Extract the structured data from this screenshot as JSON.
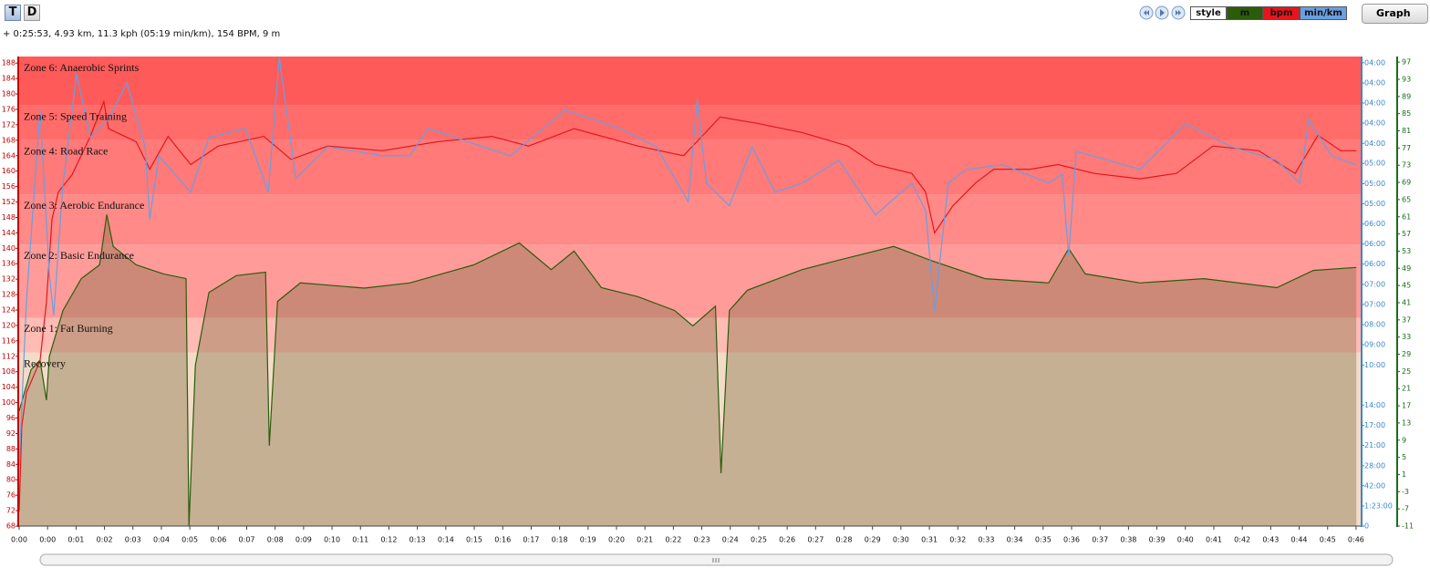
{
  "toolbar": {
    "t_button": "T",
    "d_button": "D",
    "style_button": "style",
    "graph_button": "Graph"
  },
  "status": "+ 0:25:53, 4.93 km, 11.3 kph (05:19 min/km), 154 BPM, 9 m",
  "chart_data": {
    "type": "line",
    "xlim": [
      0,
      46.22
    ],
    "xticks": [
      {
        "value": 0,
        "label": "0:00"
      },
      {
        "value": 0.98,
        "label": "0:00"
      },
      {
        "value": 1.96,
        "label": "0:01"
      },
      {
        "value": 2.94,
        "label": "0:02"
      },
      {
        "value": 3.92,
        "label": "0:03"
      },
      {
        "value": 4.9,
        "label": "0:04"
      },
      {
        "value": 5.88,
        "label": "0:05"
      },
      {
        "value": 6.86,
        "label": "0:06"
      },
      {
        "value": 7.84,
        "label": "0:07"
      },
      {
        "value": 8.82,
        "label": "0:08"
      },
      {
        "value": 9.8,
        "label": "0:09"
      },
      {
        "value": 10.78,
        "label": "0:10"
      },
      {
        "value": 11.76,
        "label": "0:11"
      },
      {
        "value": 12.74,
        "label": "0:12"
      },
      {
        "value": 13.72,
        "label": "0:13"
      },
      {
        "value": 14.7,
        "label": "0:14"
      },
      {
        "value": 15.68,
        "label": "0:15"
      },
      {
        "value": 16.66,
        "label": "0:16"
      },
      {
        "value": 17.64,
        "label": "0:17"
      },
      {
        "value": 18.62,
        "label": "0:18"
      },
      {
        "value": 19.6,
        "label": "0:19"
      },
      {
        "value": 20.58,
        "label": "0:20"
      },
      {
        "value": 21.56,
        "label": "0:21"
      },
      {
        "value": 22.54,
        "label": "0:22"
      },
      {
        "value": 23.52,
        "label": "0:23"
      },
      {
        "value": 24.5,
        "label": "0:24"
      },
      {
        "value": 25.48,
        "label": "0:25"
      },
      {
        "value": 26.46,
        "label": "0:26"
      },
      {
        "value": 27.44,
        "label": "0:27"
      },
      {
        "value": 28.42,
        "label": "0:28"
      },
      {
        "value": 29.4,
        "label": "0:29"
      },
      {
        "value": 30.38,
        "label": "0:30"
      },
      {
        "value": 31.36,
        "label": "0:31"
      },
      {
        "value": 32.34,
        "label": "0:32"
      },
      {
        "value": 33.32,
        "label": "0:33"
      },
      {
        "value": 34.3,
        "label": "0:34"
      },
      {
        "value": 35.28,
        "label": "0:35"
      },
      {
        "value": 36.26,
        "label": "0:36"
      },
      {
        "value": 37.24,
        "label": "0:37"
      },
      {
        "value": 38.22,
        "label": "0:38"
      },
      {
        "value": 39.2,
        "label": "0:39"
      },
      {
        "value": 40.18,
        "label": "0:40"
      },
      {
        "value": 41.16,
        "label": "0:41"
      },
      {
        "value": 42.14,
        "label": "0:42"
      },
      {
        "value": 43.12,
        "label": "0:43"
      },
      {
        "value": 44.1,
        "label": "0:44"
      },
      {
        "value": 45.08,
        "label": "0:45"
      },
      {
        "value": 46.06,
        "label": "0:46"
      }
    ],
    "ylim": [
      68,
      189.7
    ],
    "yticks": [
      68,
      72,
      76,
      80,
      84,
      88,
      92,
      96,
      100,
      104,
      108,
      112,
      116,
      120,
      124,
      128,
      132,
      136,
      140,
      144,
      148,
      152,
      156,
      160,
      164,
      168,
      172,
      176,
      180,
      184,
      188
    ],
    "y2lim": [
      0,
      16.65
    ],
    "y2ticks": [
      {
        "value": 0,
        "label": "0"
      },
      {
        "value": 0.71,
        "label": "1:23:00"
      },
      {
        "value": 1.43,
        "label": "42:00"
      },
      {
        "value": 2.14,
        "label": "28:00"
      },
      {
        "value": 2.86,
        "label": "21:00"
      },
      {
        "value": 3.57,
        "label": "17:00"
      },
      {
        "value": 4.29,
        "label": "14:00"
      },
      {
        "value": 5.71,
        "label": "10:00"
      },
      {
        "value": 6.43,
        "label": "09:00"
      },
      {
        "value": 7.14,
        "label": "08:00"
      },
      {
        "value": 7.86,
        "label": "07:00"
      },
      {
        "value": 8.57,
        "label": "07:00"
      },
      {
        "value": 9.29,
        "label": "06:00"
      },
      {
        "value": 10,
        "label": "06:00"
      },
      {
        "value": 10.71,
        "label": "06:00"
      },
      {
        "value": 11.43,
        "label": "05:00"
      },
      {
        "value": 12.14,
        "label": "05:00"
      },
      {
        "value": 12.86,
        "label": "05:00"
      },
      {
        "value": 13.57,
        "label": "04:00"
      },
      {
        "value": 14.29,
        "label": "04:00"
      },
      {
        "value": 15,
        "label": "04:00"
      },
      {
        "value": 15.71,
        "label": "04:00"
      },
      {
        "value": 16.43,
        "label": "04:00"
      }
    ],
    "y3lim": [
      -11,
      98.3
    ],
    "y3ticks": [
      97,
      93,
      89,
      85,
      81,
      77,
      73,
      69,
      65,
      61,
      57,
      53,
      49,
      45,
      41,
      37,
      33,
      29,
      25,
      21,
      17,
      13,
      9,
      5,
      1,
      -3,
      -7,
      -11
    ],
    "zones": [
      {
        "name": "Recovery",
        "min": 68,
        "max": 113,
        "color": "#f2dcc8"
      },
      {
        "name": "Zone 1: Fat Burning",
        "min": 113,
        "max": 122,
        "color": "#ffbcb4"
      },
      {
        "name": "Zone 2: Basic Endurance",
        "min": 122,
        "max": 141,
        "color": "#ff9c9a"
      },
      {
        "name": "Zone 3: Aerobic Endurance",
        "min": 141,
        "max": 154,
        "color": "#ff8a88"
      },
      {
        "name": "Zone 4: Road Race",
        "min": 154,
        "max": 168,
        "color": "#ff7a78"
      },
      {
        "name": "Zone 5: Speed Training",
        "min": 168,
        "max": 177,
        "color": "#ff6c6a"
      },
      {
        "name": "Zone 6: Anaerobic Sprints",
        "min": 177,
        "max": 189.7,
        "color": "#ff5a5a"
      }
    ],
    "series": [
      {
        "name": "m",
        "axis": "y3",
        "color": "#2b5c0c",
        "fill": true,
        "x": [
          0,
          0.41,
          0.72,
          0.94,
          1.04,
          1.51,
          2.14,
          2.77,
          3.02,
          3.24,
          4.03,
          4.97,
          5.75,
          5.85,
          6.07,
          6.54,
          7.48,
          8.49,
          8.62,
          8.9,
          9.69,
          11.89,
          13.46,
          15.66,
          17.23,
          18.33,
          19.12,
          20.06,
          21.32,
          22.58,
          23.21,
          23.99,
          24.18,
          24.47,
          25.09,
          26.98,
          28.24,
          30.13,
          31.38,
          33.27,
          35.47,
          36.16,
          36.73,
          38.62,
          40.82,
          43.33,
          44.59,
          46.07
        ],
        "values": [
          15.8,
          25.4,
          27.6,
          18.3,
          28.5,
          39.2,
          46.6,
          49.8,
          61.5,
          54.1,
          49.8,
          47.7,
          46.6,
          -11,
          26.4,
          43.4,
          47.3,
          48.1,
          7.7,
          41.3,
          45.6,
          44.4,
          45.6,
          49.8,
          54.9,
          48.7,
          53,
          44.5,
          42.4,
          39.2,
          35.6,
          40.2,
          1.3,
          39.2,
          43.9,
          48.7,
          50.9,
          54.1,
          50.9,
          46.6,
          45.6,
          53.6,
          47.7,
          45.6,
          46.6,
          44.5,
          48.5,
          49.2
        ]
      },
      {
        "name": "bpm",
        "axis": "y",
        "color": "#e8141c",
        "fill": false,
        "x": [
          0,
          0.09,
          0.25,
          0.72,
          0.94,
          1.13,
          1.35,
          1.82,
          2.45,
          2.92,
          3.08,
          4.03,
          4.5,
          5.13,
          5.91,
          6.86,
          8.43,
          9.37,
          10.63,
          12.52,
          14.4,
          16.29,
          17.55,
          19.12,
          21.32,
          22.89,
          24.15,
          25.41,
          26.98,
          28.55,
          29.5,
          30.75,
          31.23,
          31.54,
          32.17,
          32.96,
          33.58,
          34.84,
          35.79,
          37.04,
          38.62,
          39.87,
          41.13,
          42.7,
          43.96,
          44.75,
          45.53,
          46.07
        ],
        "values": [
          71.8,
          94,
          102.6,
          110.8,
          126,
          147.5,
          154.6,
          159,
          169,
          178,
          171,
          167.6,
          160.5,
          169,
          161.7,
          166.5,
          169,
          163,
          166.5,
          165.3,
          167.6,
          169,
          166.5,
          171,
          166.5,
          164,
          174,
          172.4,
          170,
          166.5,
          161.7,
          159.4,
          154.6,
          144,
          151,
          157,
          160.5,
          160.5,
          161.7,
          159.4,
          158,
          159.4,
          166.5,
          165.3,
          159.4,
          169.3,
          165.3,
          165.3
        ]
      },
      {
        "name": "min/km",
        "axis": "y2",
        "color": "#6a9ee2",
        "fill": false,
        "x": [
          0,
          0.25,
          0.72,
          1.04,
          1.19,
          1.51,
          1.98,
          2.45,
          3.08,
          3.71,
          4.34,
          4.5,
          4.81,
          5.91,
          6.54,
          7.8,
          8.58,
          8.96,
          9.53,
          10.63,
          12.52,
          13.46,
          14.09,
          16.92,
          18.81,
          20.69,
          21.95,
          23.05,
          23.36,
          23.68,
          24.47,
          25.25,
          26.04,
          26.98,
          28.24,
          29.5,
          30.75,
          31.23,
          31.54,
          32.01,
          32.64,
          33.9,
          35.47,
          35.94,
          36.16,
          36.42,
          38.62,
          40.19,
          41.76,
          43.33,
          44.12,
          44.43,
          45.22,
          46.07
        ],
        "values": [
          2.13,
          7.96,
          14.75,
          8.93,
          7.47,
          12.16,
          16.04,
          13.78,
          14.42,
          15.72,
          13.45,
          10.87,
          13.13,
          11.84,
          13.78,
          14.1,
          11.84,
          16.62,
          12.32,
          13.45,
          13.13,
          13.13,
          14.1,
          13.13,
          14.75,
          14.1,
          13.45,
          11.51,
          15.13,
          12.16,
          11.35,
          13.45,
          11.84,
          12.16,
          12.97,
          11.03,
          12.16,
          11.19,
          7.63,
          12.16,
          12.65,
          12.81,
          12.16,
          12.48,
          9.57,
          13.29,
          12.65,
          14.26,
          13.45,
          12.97,
          12.16,
          14.42,
          13.13,
          12.81
        ]
      }
    ]
  }
}
